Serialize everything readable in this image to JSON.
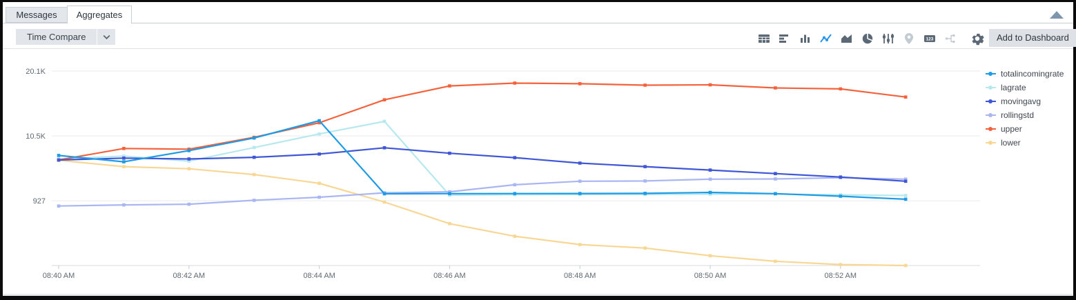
{
  "tabs": {
    "messages": "Messages",
    "aggregates": "Aggregates"
  },
  "toolbar": {
    "time_compare_label": "Time Compare",
    "add_to_dashboard_label": "Add to Dashboard",
    "icons": [
      {
        "name": "table-icon",
        "state": "normal"
      },
      {
        "name": "bar-chart-icon",
        "state": "normal"
      },
      {
        "name": "column-chart-icon",
        "state": "normal"
      },
      {
        "name": "line-chart-icon",
        "state": "active"
      },
      {
        "name": "area-chart-icon",
        "state": "normal"
      },
      {
        "name": "pie-chart-icon",
        "state": "normal"
      },
      {
        "name": "sliders-icon",
        "state": "normal"
      },
      {
        "name": "map-pin-icon",
        "state": "disabled"
      },
      {
        "name": "number-123-icon",
        "state": "normal"
      },
      {
        "name": "cluster-icon",
        "state": "disabled"
      },
      {
        "name": "gear-icon",
        "state": "normal"
      }
    ]
  },
  "chart_data": {
    "type": "line",
    "x_times": [
      "08:40 AM",
      "08:41 AM",
      "08:42 AM",
      "08:43 AM",
      "08:44 AM",
      "08:45 AM",
      "08:46 AM",
      "08:47 AM",
      "08:48 AM",
      "08:49 AM",
      "08:50 AM",
      "08:51 AM",
      "08:52 AM",
      "08:53 AM"
    ],
    "x_tick_every": 2,
    "x_tick_labels": [
      "08:40 AM",
      "08:42 AM",
      "08:44 AM",
      "08:46 AM",
      "08:48 AM",
      "08:50 AM",
      "08:52 AM"
    ],
    "y_ticks": [
      {
        "label": "20.1K",
        "value": 20100
      },
      {
        "label": "10.5K",
        "value": 10500
      },
      {
        "label": "927",
        "value": 927
      }
    ],
    "ylim": [
      -8646,
      20100
    ],
    "grid": "horizontal",
    "legend_position": "right",
    "series": [
      {
        "name": "totalincomingrate",
        "color": "#1e9be4",
        "values": [
          7620,
          6690,
          8340,
          10200,
          12760,
          1960,
          1980,
          1990,
          2000,
          2020,
          2160,
          1980,
          1600,
          1150
        ]
      },
      {
        "name": "lagrate",
        "color": "#b6e8ee",
        "values": [
          7100,
          7520,
          6790,
          8800,
          10800,
          12660,
          1750,
          1820,
          1850,
          1860,
          1900,
          1920,
          1800,
          1700
        ]
      },
      {
        "name": "movingavg",
        "color": "#3f56d6",
        "values": [
          6950,
          7230,
          7100,
          7350,
          7830,
          8750,
          7950,
          7300,
          6490,
          5970,
          5460,
          4940,
          4430,
          3810
        ]
      },
      {
        "name": "rollingstd",
        "color": "#a9b6f2",
        "values": [
          150,
          310,
          420,
          1000,
          1450,
          2100,
          2250,
          3290,
          3810,
          3850,
          4120,
          4150,
          4330,
          4120
        ]
      },
      {
        "name": "upper",
        "color": "#f4613b",
        "values": [
          6950,
          8650,
          8550,
          10300,
          12450,
          15850,
          17900,
          18320,
          18220,
          18010,
          18060,
          17600,
          17460,
          16260
        ]
      },
      {
        "name": "lower",
        "color": "#f8d694",
        "values": [
          6900,
          5970,
          5660,
          4800,
          3500,
          730,
          -2460,
          -4320,
          -5550,
          -6070,
          -7200,
          -8020,
          -8500,
          -8650
        ]
      }
    ]
  }
}
